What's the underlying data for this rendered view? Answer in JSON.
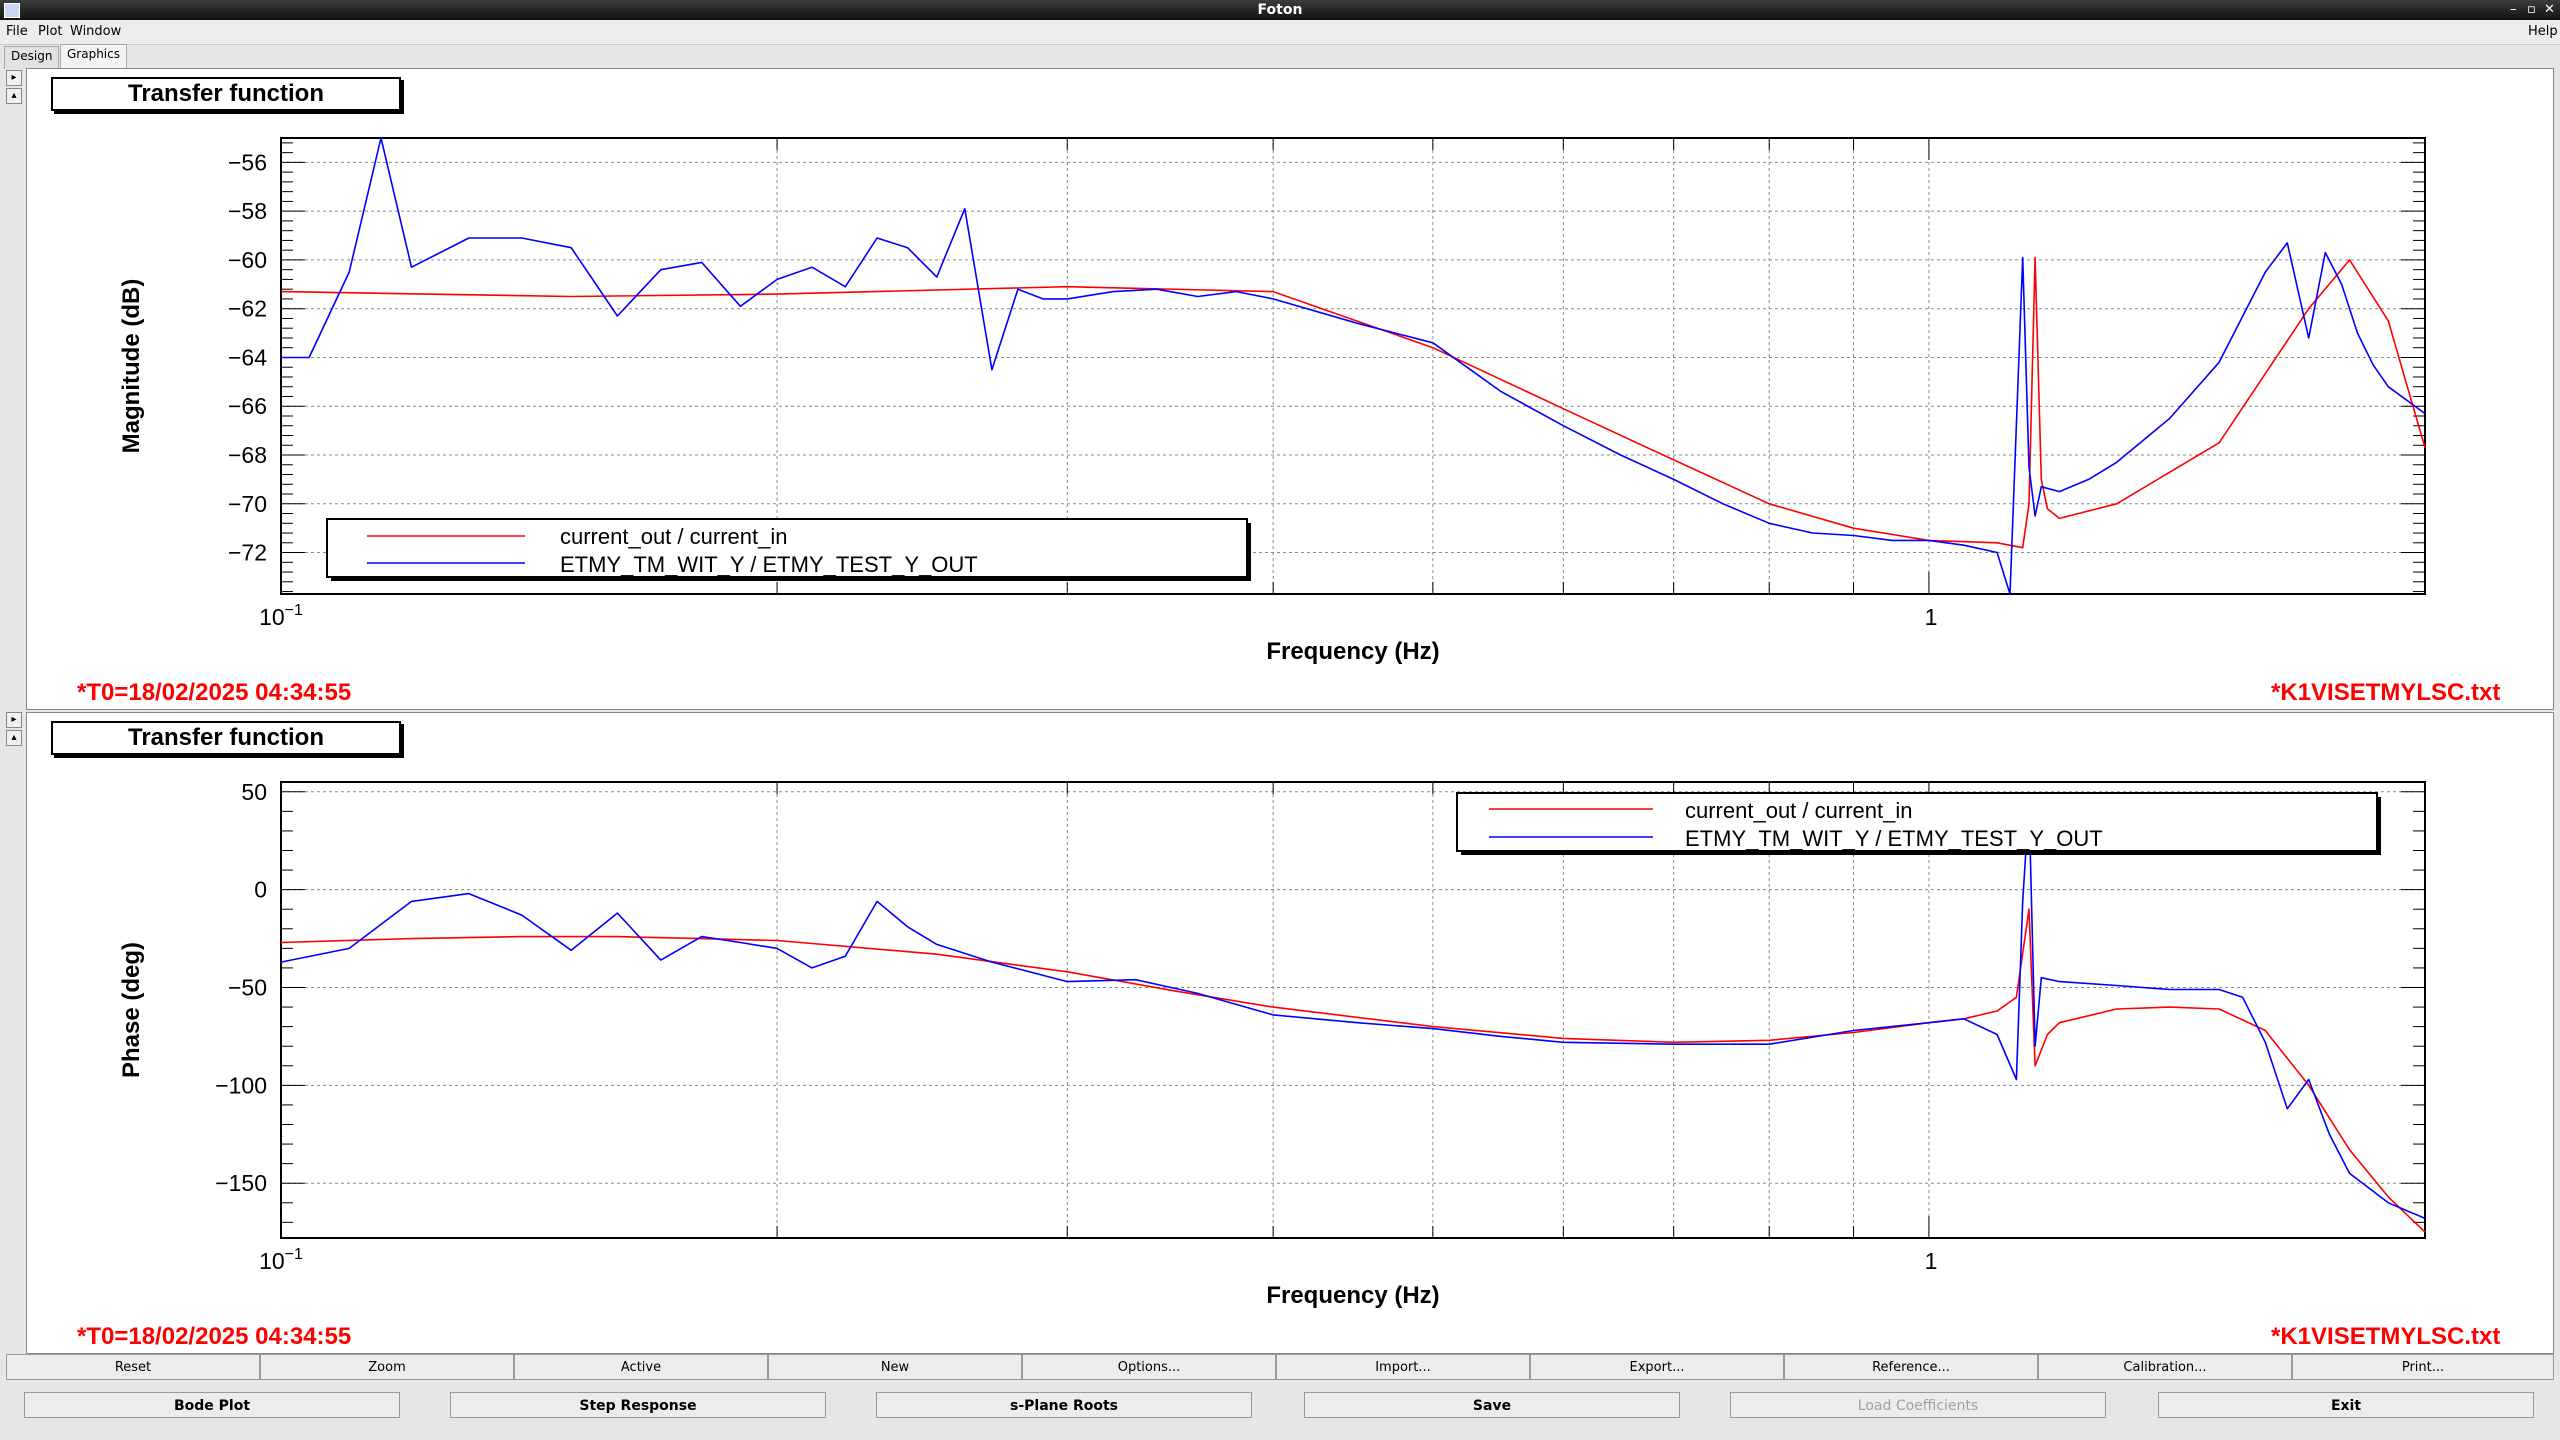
{
  "window": {
    "title": "Foton",
    "help": "Help"
  },
  "menu": {
    "file": "File",
    "plot": "Plot",
    "window": "Window"
  },
  "tabs": [
    {
      "label": "Design"
    },
    {
      "label": "Graphics"
    }
  ],
  "top_panel": {
    "title": "Transfer function",
    "ylabel": "Magnitude (dB)",
    "xlabel": "Frequency (Hz)",
    "timestamp": "*T0=18/02/2025 04:34:55",
    "filename": "*K1VISETMYLSC.txt",
    "legend": [
      "current_out / current_in",
      "ETMY_TM_WIT_Y / ETMY_TEST_Y_OUT"
    ],
    "yticks": [
      "−56",
      "−58",
      "−60",
      "−62",
      "−64",
      "−66",
      "−68",
      "−70",
      "−72"
    ],
    "xtick_left_base": "10",
    "xtick_left_exp": "−1",
    "xtick_one": "1"
  },
  "bottom_panel": {
    "title": "Transfer function",
    "ylabel": "Phase (deg)",
    "xlabel": "Frequency (Hz)",
    "timestamp": "*T0=18/02/2025 04:34:55",
    "filename": "*K1VISETMYLSC.txt",
    "legend": [
      "current_out / current_in",
      "ETMY_TM_WIT_Y / ETMY_TEST_Y_OUT"
    ],
    "yticks": [
      "50",
      "0",
      "−50",
      "−100",
      "−150"
    ],
    "xtick_left_base": "10",
    "xtick_left_exp": "−1",
    "xtick_one": "1"
  },
  "colors": {
    "model": "#ff0000",
    "measured": "#0000ff",
    "stamp": "#ff0000"
  },
  "buttons_row1": [
    "Reset",
    "Zoom",
    "Active",
    "New",
    "Options...",
    "Import...",
    "Export...",
    "Reference...",
    "Calibration...",
    "Print..."
  ],
  "buttons_row2": [
    {
      "label": "Bode Plot",
      "enabled": true
    },
    {
      "label": "Step Response",
      "enabled": true
    },
    {
      "label": "s-Plane Roots",
      "enabled": true
    },
    {
      "label": "Save",
      "enabled": true
    },
    {
      "label": "Load Coefficients",
      "enabled": false
    },
    {
      "label": "Exit",
      "enabled": true
    }
  ],
  "chart_data": [
    {
      "type": "line",
      "title": "Transfer function",
      "xlabel": "Frequency (Hz)",
      "ylabel": "Magnitude (dB)",
      "xscale": "log",
      "xlim": [
        0.1,
        2.0
      ],
      "ylim": [
        -73.7,
        -55.0
      ],
      "grid": true,
      "legend_position": "bottom-left",
      "series": [
        {
          "name": "current_out / current_in",
          "x": [
            0.1,
            0.15,
            0.2,
            0.3,
            0.4,
            0.5,
            0.6,
            0.7,
            0.8,
            0.9,
            1.0,
            1.1,
            1.14,
            1.15,
            1.16,
            1.17,
            1.18,
            1.2,
            1.3,
            1.5,
            1.7,
            1.8,
            1.9,
            2.0
          ],
          "y": [
            -61.3,
            -61.5,
            -61.4,
            -61.1,
            -61.3,
            -63.6,
            -66.1,
            -68.2,
            -70.0,
            -71.0,
            -71.5,
            -71.6,
            -71.8,
            -70.0,
            -59.9,
            -69.0,
            -70.2,
            -70.6,
            -70.0,
            -67.5,
            -62.0,
            -60.0,
            -62.5,
            -67.7
          ]
        },
        {
          "name": "ETMY_TM_WIT_Y / ETMY_TEST_Y_OUT",
          "x": [
            0.1,
            0.104,
            0.11,
            0.115,
            0.12,
            0.13,
            0.14,
            0.15,
            0.16,
            0.17,
            0.18,
            0.19,
            0.2,
            0.21,
            0.22,
            0.23,
            0.24,
            0.25,
            0.26,
            0.27,
            0.28,
            0.29,
            0.3,
            0.32,
            0.34,
            0.36,
            0.38,
            0.4,
            0.45,
            0.5,
            0.55,
            0.6,
            0.65,
            0.7,
            0.75,
            0.8,
            0.85,
            0.9,
            0.95,
            1.0,
            1.05,
            1.1,
            1.12,
            1.14,
            1.15,
            1.16,
            1.17,
            1.2,
            1.25,
            1.3,
            1.4,
            1.5,
            1.6,
            1.65,
            1.7,
            1.74,
            1.78,
            1.82,
            1.86,
            1.9,
            2.0
          ],
          "y": [
            -64.0,
            -64.0,
            -60.5,
            -55.0,
            -60.3,
            -59.1,
            -59.1,
            -59.5,
            -62.3,
            -60.4,
            -60.1,
            -61.9,
            -60.8,
            -60.3,
            -61.1,
            -59.1,
            -59.5,
            -60.7,
            -57.9,
            -64.5,
            -61.2,
            -61.6,
            -61.6,
            -61.3,
            -61.2,
            -61.5,
            -61.3,
            -61.6,
            -62.6,
            -63.4,
            -65.4,
            -66.8,
            -68.0,
            -69.0,
            -70.0,
            -70.8,
            -71.2,
            -71.3,
            -71.5,
            -71.5,
            -71.7,
            -72.0,
            -73.7,
            -59.9,
            -68.5,
            -70.5,
            -69.3,
            -69.5,
            -69.0,
            -68.3,
            -66.5,
            -64.2,
            -60.5,
            -59.3,
            -63.2,
            -59.7,
            -61.0,
            -63.0,
            -64.3,
            -65.2,
            -66.3
          ]
        }
      ]
    },
    {
      "type": "line",
      "title": "Transfer function",
      "xlabel": "Frequency (Hz)",
      "ylabel": "Phase (deg)",
      "xscale": "log",
      "xlim": [
        0.1,
        2.0
      ],
      "ylim": [
        -178,
        55
      ],
      "grid": true,
      "legend_position": "top-right",
      "series": [
        {
          "name": "current_out / current_in",
          "x": [
            0.1,
            0.12,
            0.14,
            0.16,
            0.18,
            0.2,
            0.25,
            0.3,
            0.35,
            0.4,
            0.5,
            0.6,
            0.7,
            0.8,
            0.9,
            1.0,
            1.05,
            1.1,
            1.13,
            1.15,
            1.16,
            1.17,
            1.18,
            1.2,
            1.3,
            1.4,
            1.5,
            1.6,
            1.7,
            1.8,
            1.9,
            2.0
          ],
          "y": [
            -27,
            -25,
            -24,
            -24,
            -25,
            -26,
            -33,
            -42,
            -52,
            -60,
            -70,
            -76,
            -78,
            -77,
            -73,
            -68,
            -66,
            -62,
            -55,
            -10,
            -90,
            -82,
            -74,
            -68,
            -61,
            -60,
            -61,
            -72,
            -100,
            -133,
            -157,
            -175
          ]
        },
        {
          "name": "ETMY_TM_WIT_Y / ETMY_TEST_Y_OUT",
          "x": [
            0.1,
            0.11,
            0.12,
            0.13,
            0.14,
            0.15,
            0.16,
            0.17,
            0.18,
            0.19,
            0.2,
            0.21,
            0.22,
            0.23,
            0.24,
            0.25,
            0.27,
            0.3,
            0.33,
            0.36,
            0.4,
            0.45,
            0.5,
            0.55,
            0.6,
            0.7,
            0.8,
            0.9,
            1.0,
            1.05,
            1.1,
            1.13,
            1.14,
            1.15,
            1.16,
            1.17,
            1.2,
            1.3,
            1.4,
            1.5,
            1.55,
            1.6,
            1.65,
            1.7,
            1.75,
            1.8,
            1.9,
            2.0
          ],
          "y": [
            -37,
            -30,
            -6,
            -2,
            -13,
            -31,
            -12,
            -36,
            -24,
            -27,
            -30,
            -40,
            -34,
            -6,
            -19,
            -28,
            -37,
            -47,
            -46,
            -53,
            -64,
            -68,
            -71,
            -75,
            -78,
            -79,
            -79,
            -72,
            -68,
            -66,
            -74,
            -97,
            -6,
            45,
            -80,
            -45,
            -47,
            -49,
            -51,
            -51,
            -55,
            -78,
            -112,
            -97,
            -125,
            -145,
            -160,
            -168
          ]
        }
      ]
    }
  ]
}
